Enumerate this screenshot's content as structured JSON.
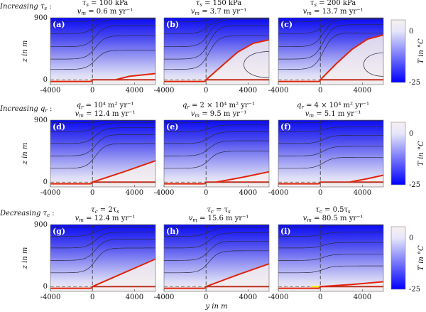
{
  "chart_data": {
    "type": "heatmap",
    "xlabel": "y in m",
    "ylabel": "z in m",
    "xlim": [
      -4000,
      6000
    ],
    "ylim": [
      -70,
      900
    ],
    "xticks": [
      "-4000",
      "0",
      "4000"
    ],
    "yticks": [
      "900",
      "0"
    ],
    "colorbar": {
      "label": "T in °C",
      "ticks": [
        "0",
        "-25"
      ],
      "range": [
        -25,
        0.5
      ],
      "colors": [
        "#0000ff",
        "#f7f0f0"
      ]
    },
    "rows": [
      {
        "label": [
          [
            "Increasing τ",
            "s"
          ],
          [
            " :"
          ]
        ],
        "panels": [
          {
            "id": "(a)",
            "title1": [
              [
                "τ",
                "s"
              ],
              [
                " = 100 kPa"
              ]
            ],
            "title2": [
              [
                "v",
                "m"
              ],
              [
                " = 0.6 m yr⁻¹"
              ]
            ],
            "contours": [
              [
                150,
                430
              ],
              [
                300,
                640
              ],
              [
                480,
                790
              ],
              [
                670,
                880
              ],
              [
                840,
                900
              ]
            ],
            "loop": null,
            "red": [
              [
                2200,
                0
              ],
              [
                3500,
                50
              ],
              [
                6000,
                90
              ]
            ],
            "yellow": false
          },
          {
            "id": "(b)",
            "title1": [
              [
                "τ",
                "s"
              ],
              [
                " = 150 kPa"
              ]
            ],
            "title2": [
              [
                "v",
                "m"
              ],
              [
                " = 3.7 m yr⁻¹"
              ]
            ],
            "contours": [
              [
                150,
                640
              ],
              [
                300,
                790
              ],
              [
                480,
                880
              ],
              [
                670,
                900
              ],
              [
                840,
                900
              ]
            ],
            "loop": [
              2800,
              220,
              190
            ],
            "red": [
              [
                0,
                0
              ],
              [
                1500,
                200
              ],
              [
                3000,
                400
              ],
              [
                4500,
                530
              ],
              [
                6000,
                580
              ]
            ],
            "yellow": false
          },
          {
            "id": "(c)",
            "title1": [
              [
                "τ",
                "s"
              ],
              [
                " = 200 kPa"
              ]
            ],
            "title2": [
              [
                "v",
                "m"
              ],
              [
                " = 13.7 m yr⁻¹"
              ]
            ],
            "contours": [
              [
                150,
                680
              ],
              [
                300,
                800
              ],
              [
                480,
                880
              ],
              [
                670,
                900
              ],
              [
                840,
                900
              ]
            ],
            "loop": [
              3500,
              220,
              170
            ],
            "red": [
              [
                0,
                0
              ],
              [
                1500,
                230
              ],
              [
                3000,
                440
              ],
              [
                4500,
                590
              ],
              [
                6000,
                650
              ]
            ],
            "yellow": false
          }
        ]
      },
      {
        "label": [
          [
            "Increasing q",
            "r"
          ],
          [
            " :"
          ]
        ],
        "panels": [
          {
            "id": "(d)",
            "title1": [
              [
                "q",
                "r"
              ],
              [
                " = 10⁴ m² yr⁻¹"
              ]
            ],
            "title2": [
              [
                "v",
                "m"
              ],
              [
                " = 12.4 m yr⁻¹"
              ]
            ],
            "contours": [
              [
                200,
                560
              ],
              [
                380,
                690
              ],
              [
                560,
                790
              ],
              [
                730,
                860
              ],
              [
                860,
                900
              ]
            ],
            "loop": null,
            "red": [
              [
                0,
                0
              ],
              [
                3000,
                150
              ],
              [
                6000,
                310
              ]
            ],
            "yellow": false
          },
          {
            "id": "(e)",
            "title1": [
              [
                "q",
                "r"
              ],
              [
                " = 2 × 10⁴ m² yr⁻¹"
              ]
            ],
            "title2": [
              [
                "v",
                "m"
              ],
              [
                " = 9.5 m yr⁻¹"
              ]
            ],
            "contours": [
              [
                200,
                450
              ],
              [
                380,
                600
              ],
              [
                560,
                730
              ],
              [
                730,
                830
              ],
              [
                860,
                900
              ]
            ],
            "loop": null,
            "red": [
              [
                1000,
                0
              ],
              [
                3500,
                70
              ],
              [
                6000,
                150
              ]
            ],
            "yellow": false
          },
          {
            "id": "(f)",
            "title1": [
              [
                "q",
                "r"
              ],
              [
                " = 4 × 10⁴ m² yr⁻¹"
              ]
            ],
            "title2": [
              [
                "v",
                "m"
              ],
              [
                " = 5.1 m yr⁻¹"
              ]
            ],
            "contours": [
              [
                200,
                360
              ],
              [
                380,
                520
              ],
              [
                560,
                680
              ],
              [
                730,
                800
              ],
              [
                860,
                890
              ]
            ],
            "loop": null,
            "red": [
              [
                2800,
                0
              ],
              [
                4500,
                50
              ],
              [
                6000,
                100
              ]
            ],
            "yellow": false
          }
        ]
      },
      {
        "label": [
          [
            "Decreasing τ",
            "c"
          ],
          [
            " :"
          ]
        ],
        "panels": [
          {
            "id": "(g)",
            "title1": [
              [
                "τ",
                "c"
              ],
              [
                " = 2τ"
              ],
              [
                "",
                "s"
              ]
            ],
            "title2": [
              [
                "v",
                "m"
              ],
              [
                " = 12.4 m yr⁻¹"
              ]
            ],
            "contours": [
              [
                200,
                560
              ],
              [
                380,
                690
              ],
              [
                560,
                790
              ],
              [
                730,
                860
              ],
              [
                860,
                900
              ]
            ],
            "loop": null,
            "red": [
              [
                0,
                0
              ],
              [
                3000,
                200
              ],
              [
                6000,
                400
              ]
            ],
            "yellow": false
          },
          {
            "id": "(h)",
            "title1": [
              [
                "τ",
                "c"
              ],
              [
                " = τ"
              ],
              [
                "",
                "s"
              ]
            ],
            "title2": [
              [
                "v",
                "m"
              ],
              [
                " = 15.6 m yr⁻¹"
              ]
            ],
            "contours": [
              [
                200,
                520
              ],
              [
                380,
                660
              ],
              [
                560,
                780
              ],
              [
                730,
                860
              ],
              [
                860,
                900
              ]
            ],
            "loop": null,
            "red": [
              [
                0,
                0
              ],
              [
                3000,
                170
              ],
              [
                6000,
                330
              ]
            ],
            "yellow": false
          },
          {
            "id": "(i)",
            "title1": [
              [
                "τ",
                "c"
              ],
              [
                " = 0.5τ"
              ],
              [
                "",
                "s"
              ]
            ],
            "title2": [
              [
                "v",
                "m"
              ],
              [
                " = 80.5 m yr⁻¹"
              ]
            ],
            "contours": [
              [
                200,
                300
              ],
              [
                380,
                470
              ],
              [
                560,
                640
              ],
              [
                730,
                790
              ],
              [
                860,
                890
              ]
            ],
            "loop": null,
            "red": [
              [
                0,
                0
              ],
              [
                3000,
                30
              ],
              [
                6000,
                70
              ]
            ],
            "yellow": true
          }
        ]
      }
    ]
  }
}
